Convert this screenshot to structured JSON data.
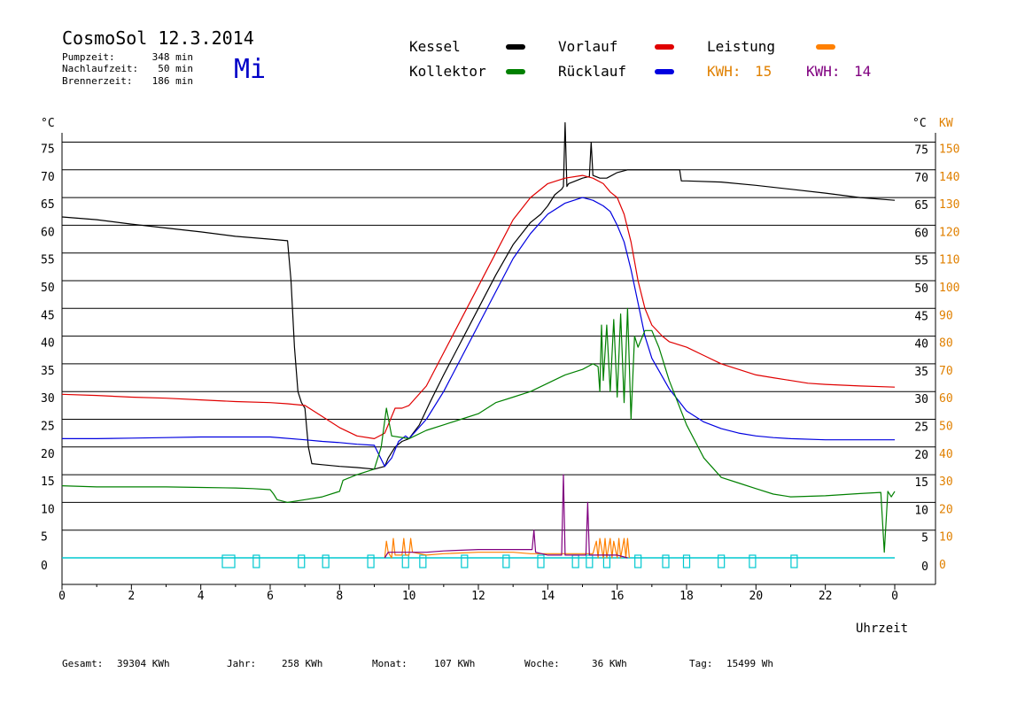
{
  "header": {
    "title": "CosmoSol 12.3.2014",
    "day": "Mi",
    "stats": [
      {
        "label": "Pumpzeit:",
        "value": "348 min"
      },
      {
        "label": "Nachlaufzeit:",
        "value": "50 min"
      },
      {
        "label": "Brennerzeit:",
        "value": "186 min"
      }
    ]
  },
  "legend": {
    "items": [
      {
        "label": "Kessel",
        "color": "#000000"
      },
      {
        "label": "Vorlauf",
        "color": "#e00000"
      },
      {
        "label": "Leistung",
        "color": "#ff8000"
      },
      {
        "label": "Kollektor",
        "color": "#008000"
      },
      {
        "label": "Rücklauf",
        "color": "#0000e0"
      }
    ],
    "kwh": [
      {
        "label": "KWH:",
        "value": "15",
        "color": "#e08000"
      },
      {
        "label": "KWH:",
        "value": "14",
        "color": "#800080"
      }
    ]
  },
  "footer": [
    {
      "label": "Gesamt:",
      "value": "39304 KWh"
    },
    {
      "label": "Jahr:",
      "value": "258 KWh"
    },
    {
      "label": "Monat:",
      "value": "107 KWh"
    },
    {
      "label": "Woche:",
      "value": "36 KWh"
    },
    {
      "label": "Tag:",
      "value": "15499 Wh"
    }
  ],
  "chart_data": {
    "type": "line",
    "title": "CosmoSol 12.3.2014",
    "xlabel": "Uhrzeit",
    "ylabel_left": "°C",
    "ylabel_right_temp": "°C",
    "ylabel_right_power": "KW",
    "xlim": [
      0,
      24
    ],
    "ylim": [
      0,
      80
    ],
    "y2lim": [
      0,
      160
    ],
    "x_ticks": [
      "0",
      "2",
      "4",
      "6",
      "8",
      "10",
      "12",
      "14",
      "16",
      "18",
      "20",
      "22",
      "0"
    ],
    "y_ticks": [
      "0",
      "5",
      "10",
      "15",
      "20",
      "25",
      "30",
      "35",
      "40",
      "45",
      "50",
      "55",
      "60",
      "65",
      "70",
      "75"
    ],
    "y2_ticks": [
      "0",
      "10",
      "20",
      "30",
      "40",
      "50",
      "60",
      "70",
      "80",
      "90",
      "100",
      "110",
      "120",
      "130",
      "140",
      "150"
    ],
    "grid": true,
    "colors": {
      "kessel": "#000000",
      "vorlauf": "#e00000",
      "leistung": "#ff8000",
      "kollektor": "#008000",
      "ruecklauf": "#0000e0",
      "kwh2": "#800080",
      "pump": "#00c8d0",
      "kw_axis": "#e08000"
    },
    "series": [
      {
        "name": "Kessel",
        "key": "kessel",
        "x": [
          0,
          1,
          2,
          3,
          4,
          5,
          6,
          6.5,
          6.6,
          6.7,
          6.8,
          6.9,
          7.0,
          7.1,
          7.2,
          7.5,
          8.0,
          8.5,
          9.0,
          9.3,
          9.4,
          9.6,
          9.8,
          10.0,
          10.3,
          10.6,
          11.0,
          11.5,
          12.0,
          12.5,
          13.0,
          13.5,
          13.8,
          14.0,
          14.2,
          14.4,
          14.45,
          14.5,
          14.55,
          14.6,
          14.8,
          15.0,
          15.2,
          15.25,
          15.3,
          15.5,
          15.7,
          16.0,
          16.3,
          17.0,
          17.8,
          17.85,
          18.0,
          19.0,
          20.0,
          21.0,
          22.0,
          23.0,
          24.0
        ],
        "y": [
          61.5,
          61,
          60.2,
          59.5,
          58.8,
          58,
          57.5,
          57.2,
          50,
          38,
          30,
          28,
          27,
          20,
          17,
          16.8,
          16.5,
          16.3,
          16,
          16.5,
          18,
          20,
          21,
          21.5,
          24,
          28,
          33,
          39,
          45,
          51,
          56.5,
          60.5,
          62,
          63.5,
          65.5,
          66.5,
          67,
          78.5,
          67,
          67.5,
          68,
          68.5,
          68.8,
          75,
          69,
          68.5,
          68.5,
          69.5,
          70,
          70,
          70,
          68,
          68,
          67.8,
          67.2,
          66.5,
          65.8,
          65,
          64.5
        ]
      },
      {
        "name": "Vorlauf",
        "key": "vorlauf",
        "x": [
          0,
          1,
          2,
          3,
          4,
          5,
          6,
          6.5,
          7.0,
          7.5,
          8.0,
          8.5,
          9.0,
          9.3,
          9.4,
          9.6,
          9.8,
          10.0,
          10.5,
          11.0,
          11.5,
          12.0,
          12.5,
          13.0,
          13.5,
          14.0,
          14.5,
          15.0,
          15.3,
          15.6,
          15.8,
          16.0,
          16.2,
          16.4,
          16.6,
          16.8,
          17.0,
          17.3,
          17.5,
          18.0,
          18.5,
          19.0,
          19.5,
          20.0,
          20.5,
          21.0,
          21.5,
          22.0,
          23.0,
          24.0
        ],
        "y": [
          29.5,
          29.3,
          29,
          28.8,
          28.5,
          28.2,
          28,
          27.8,
          27.5,
          25.5,
          23.5,
          22,
          21.5,
          22.5,
          24,
          27,
          27,
          27.5,
          31,
          37,
          43,
          49,
          55,
          61,
          65,
          67.5,
          68.5,
          69,
          68.5,
          67.5,
          66,
          65,
          62,
          57,
          50,
          45,
          42,
          40,
          39,
          38,
          36.5,
          35,
          34,
          33,
          32.5,
          32,
          31.5,
          31.3,
          31,
          30.8
        ]
      },
      {
        "name": "Rücklauf",
        "key": "ruecklauf",
        "x": [
          0,
          1,
          2,
          3,
          4,
          5,
          6,
          7.0,
          7.5,
          8.0,
          8.5,
          9.0,
          9.3,
          9.5,
          9.7,
          9.9,
          10.0,
          10.5,
          11.0,
          11.5,
          12.0,
          12.5,
          13.0,
          13.5,
          14.0,
          14.5,
          15.0,
          15.3,
          15.6,
          15.8,
          16.0,
          16.2,
          16.4,
          16.6,
          16.8,
          17.0,
          17.5,
          18.0,
          18.5,
          19.0,
          19.5,
          20.0,
          20.5,
          21.0,
          22.0,
          23.0,
          24.0
        ],
        "y": [
          21.5,
          21.5,
          21.6,
          21.7,
          21.8,
          21.8,
          21.8,
          21.3,
          21,
          20.8,
          20.5,
          20.3,
          16.5,
          18,
          21,
          22,
          21.5,
          25,
          30,
          36,
          42,
          48,
          54,
          58.5,
          62,
          64,
          65,
          64.5,
          63.5,
          62.5,
          60,
          57,
          52,
          46,
          40,
          36,
          30.5,
          26.5,
          24.5,
          23.3,
          22.5,
          22,
          21.7,
          21.5,
          21.3,
          21.3,
          21.3
        ]
      },
      {
        "name": "Kollektor",
        "key": "kollektor",
        "x": [
          0,
          1,
          2,
          3,
          4,
          5,
          5.5,
          6.0,
          6.1,
          6.2,
          6.5,
          7.0,
          7.5,
          8.0,
          8.1,
          8.5,
          9.0,
          9.2,
          9.35,
          9.5,
          10.0,
          10.5,
          11.0,
          11.5,
          12.0,
          12.5,
          13.0,
          13.5,
          14.0,
          14.5,
          15.0,
          15.3,
          15.45,
          15.5,
          15.55,
          15.6,
          15.7,
          15.8,
          15.9,
          16.0,
          16.1,
          16.2,
          16.3,
          16.4,
          16.5,
          16.6,
          16.8,
          17.0,
          17.2,
          17.5,
          18.0,
          18.5,
          19.0,
          19.5,
          20.0,
          20.5,
          21.0,
          22.0,
          23.0,
          23.6,
          23.7,
          23.8,
          23.9,
          24.0
        ],
        "y": [
          13,
          12.8,
          12.8,
          12.8,
          12.7,
          12.6,
          12.5,
          12.3,
          11.5,
          10.5,
          10,
          10.5,
          11,
          12,
          14,
          15,
          16,
          20,
          27,
          22,
          21.5,
          23,
          24,
          25,
          26,
          28,
          29,
          30,
          31.5,
          33,
          34,
          35,
          34.5,
          30,
          42,
          32,
          42,
          30,
          43,
          29,
          44,
          28,
          45,
          25,
          40,
          38,
          41,
          41,
          38,
          32,
          24,
          18,
          14.5,
          13.5,
          12.5,
          11.5,
          11,
          11.2,
          11.6,
          11.8,
          1,
          12,
          11,
          12
        ]
      },
      {
        "name": "Leistung",
        "key": "leistung",
        "axis": "kw",
        "x": [
          9.3,
          9.35,
          9.4,
          9.5,
          9.55,
          9.6,
          9.8,
          9.85,
          9.9,
          10.0,
          10.05,
          10.1,
          10.5,
          11.0,
          12.0,
          13.0,
          13.5,
          14.0,
          14.5,
          15.0,
          15.3,
          15.4,
          15.45,
          15.5,
          15.6,
          15.65,
          15.7,
          15.8,
          15.85,
          15.9,
          16.0,
          16.05,
          16.1,
          16.2,
          16.25,
          16.3,
          16.35
        ],
        "y": [
          0,
          6,
          2,
          0,
          7,
          1,
          1,
          7,
          1,
          1,
          7,
          2,
          1,
          1.5,
          2,
          2,
          1.5,
          1.5,
          1.5,
          1.5,
          1.5,
          6,
          0,
          7,
          0,
          7,
          0,
          7,
          0,
          6,
          0,
          7,
          0,
          7,
          0,
          7,
          0
        ]
      },
      {
        "name": "KWH 2",
        "key": "kwh2",
        "axis": "kw",
        "x": [
          9.3,
          9.4,
          10.0,
          10.5,
          11.0,
          12.0,
          13.0,
          13.55,
          13.6,
          13.65,
          14.0,
          14.4,
          14.45,
          14.5,
          14.55,
          14.6,
          15.0,
          15.1,
          15.15,
          15.2,
          15.25,
          15.3,
          15.6,
          16.0,
          16.3
        ],
        "y": [
          0,
          2,
          2,
          2,
          2.5,
          3,
          3,
          3,
          10,
          2,
          1,
          1,
          30,
          1,
          1,
          1,
          1,
          1,
          20,
          1,
          1,
          1,
          1,
          1,
          0
        ]
      }
    ],
    "pump_markers": [
      4.8,
      5.6,
      6.9,
      7.6,
      8.9,
      9.9,
      10.4,
      11.6,
      12.8,
      13.8,
      14.8,
      15.2,
      15.7,
      16.6,
      17.4,
      18.0,
      19.0,
      19.9,
      21.1
    ]
  }
}
